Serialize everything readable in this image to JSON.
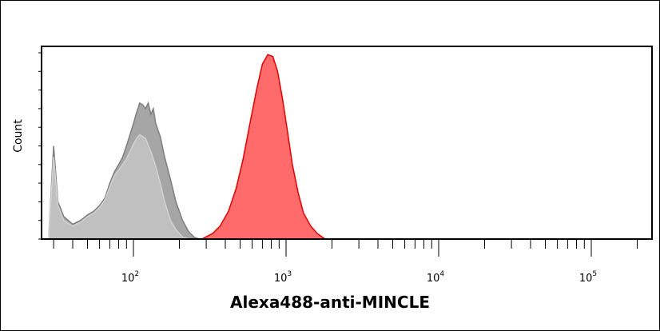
{
  "chart_data": {
    "type": "area",
    "title": "",
    "xlabel": "Alexa488-anti-MINCLE",
    "ylabel": "Count",
    "x_scale": "log",
    "xlim": [
      25,
      250000
    ],
    "ylim": [
      0,
      1
    ],
    "x_ticks": [
      {
        "value": 100,
        "base": "10",
        "exp": "2"
      },
      {
        "value": 1000,
        "base": "10",
        "exp": "3"
      },
      {
        "value": 10000,
        "base": "10",
        "exp": "4"
      },
      {
        "value": 100000,
        "base": "10",
        "exp": "5"
      }
    ],
    "grid": false,
    "series": [
      {
        "color": "#a6a6a6",
        "stroke": "#7f7f7f",
        "points": [
          [
            28,
            0.05
          ],
          [
            30,
            0.5
          ],
          [
            32,
            0.2
          ],
          [
            35,
            0.12
          ],
          [
            40,
            0.08
          ],
          [
            45,
            0.1
          ],
          [
            50,
            0.13
          ],
          [
            55,
            0.15
          ],
          [
            60,
            0.18
          ],
          [
            65,
            0.22
          ],
          [
            70,
            0.3
          ],
          [
            75,
            0.36
          ],
          [
            80,
            0.4
          ],
          [
            85,
            0.44
          ],
          [
            90,
            0.5
          ],
          [
            95,
            0.56
          ],
          [
            100,
            0.62
          ],
          [
            105,
            0.68
          ],
          [
            110,
            0.73
          ],
          [
            115,
            0.72
          ],
          [
            120,
            0.7
          ],
          [
            125,
            0.73
          ],
          [
            130,
            0.67
          ],
          [
            135,
            0.7
          ],
          [
            140,
            0.62
          ],
          [
            150,
            0.55
          ],
          [
            160,
            0.44
          ],
          [
            175,
            0.32
          ],
          [
            190,
            0.2
          ],
          [
            210,
            0.1
          ],
          [
            230,
            0.04
          ],
          [
            250,
            0.01
          ],
          [
            270,
            0.0
          ]
        ]
      },
      {
        "color": "#c0c0c0",
        "stroke": "#d2d2d2",
        "points": [
          [
            28,
            0.05
          ],
          [
            30,
            0.44
          ],
          [
            32,
            0.18
          ],
          [
            35,
            0.1
          ],
          [
            40,
            0.07
          ],
          [
            45,
            0.09
          ],
          [
            50,
            0.12
          ],
          [
            55,
            0.14
          ],
          [
            60,
            0.17
          ],
          [
            65,
            0.21
          ],
          [
            70,
            0.28
          ],
          [
            75,
            0.34
          ],
          [
            80,
            0.37
          ],
          [
            85,
            0.4
          ],
          [
            90,
            0.43
          ],
          [
            95,
            0.47
          ],
          [
            100,
            0.51
          ],
          [
            105,
            0.54
          ],
          [
            110,
            0.56
          ],
          [
            115,
            0.55
          ],
          [
            120,
            0.54
          ],
          [
            130,
            0.47
          ],
          [
            140,
            0.39
          ],
          [
            150,
            0.3
          ],
          [
            160,
            0.2
          ],
          [
            175,
            0.1
          ],
          [
            190,
            0.05
          ],
          [
            210,
            0.01
          ],
          [
            230,
            0.0
          ]
        ]
      },
      {
        "color": "#ff6b6b",
        "stroke": "#e00000",
        "points": [
          [
            280,
            0.0
          ],
          [
            330,
            0.03
          ],
          [
            370,
            0.07
          ],
          [
            420,
            0.15
          ],
          [
            470,
            0.27
          ],
          [
            520,
            0.42
          ],
          [
            580,
            0.62
          ],
          [
            640,
            0.8
          ],
          [
            700,
            0.94
          ],
          [
            760,
            0.99
          ],
          [
            820,
            0.98
          ],
          [
            880,
            0.9
          ],
          [
            950,
            0.75
          ],
          [
            1030,
            0.56
          ],
          [
            1100,
            0.4
          ],
          [
            1200,
            0.25
          ],
          [
            1300,
            0.14
          ],
          [
            1450,
            0.07
          ],
          [
            1600,
            0.03
          ],
          [
            1800,
            0.0
          ]
        ]
      }
    ]
  }
}
